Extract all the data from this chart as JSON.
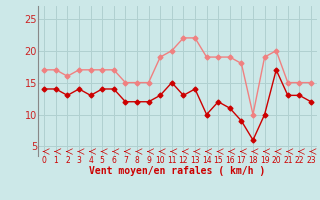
{
  "x": [
    0,
    1,
    2,
    3,
    4,
    5,
    6,
    7,
    8,
    9,
    10,
    11,
    12,
    13,
    14,
    15,
    16,
    17,
    18,
    19,
    20,
    21,
    22,
    23
  ],
  "y_rafales": [
    17,
    17,
    16,
    17,
    17,
    17,
    17,
    15,
    15,
    15,
    19,
    20,
    22,
    22,
    19,
    19,
    19,
    18,
    10,
    19,
    20,
    15,
    15,
    15
  ],
  "y_moyen": [
    14,
    14,
    13,
    14,
    13,
    14,
    14,
    12,
    12,
    12,
    13,
    15,
    13,
    14,
    10,
    12,
    11,
    9,
    6,
    10,
    17,
    13,
    13,
    12
  ],
  "color_rafales": "#f08080",
  "color_moyen": "#cc0000",
  "bg_color": "#cce8e8",
  "grid_color": "#b0d0d0",
  "xlabel": "Vent moyen/en rafales ( km/h )",
  "xlabel_color": "#cc0000",
  "ytick_labels": [
    "5",
    "10",
    "15",
    "20",
    "25"
  ],
  "ytick_vals": [
    5,
    10,
    15,
    20,
    25
  ],
  "ylim": [
    3.5,
    27
  ],
  "xlim": [
    -0.5,
    23.5
  ],
  "marker_size": 2.5,
  "linewidth": 1.0
}
